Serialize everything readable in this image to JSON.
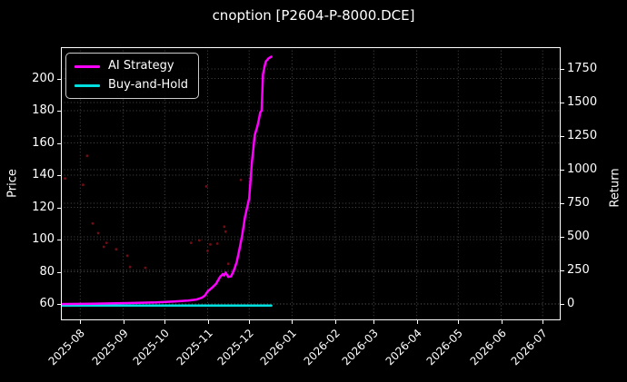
{
  "chart_data": {
    "type": "line",
    "title": "cnoption [P2604-P-8000.DCE]",
    "background": "#000000",
    "text_color": "#ffffff",
    "grid": {
      "visible": true,
      "style": "dotted",
      "color": "#4a4a4a"
    },
    "legend": {
      "position": "upper left",
      "items": [
        {
          "label": "AI Strategy",
          "color": "#ff00ff"
        },
        {
          "label": "Buy-and-Hold",
          "color": "#00e0e0"
        }
      ]
    },
    "x_axis": {
      "tick_labels": [
        "2025-08",
        "2025-09",
        "2025-10",
        "2025-11",
        "2025-12",
        "2026-01",
        "2026-02",
        "2026-03",
        "2026-04",
        "2026-05",
        "2026-06",
        "2026-07"
      ],
      "tick_dates": [
        "2025-08-01",
        "2025-09-01",
        "2025-10-01",
        "2025-11-01",
        "2025-12-01",
        "2026-01-01",
        "2026-02-01",
        "2026-03-01",
        "2026-04-01",
        "2026-05-01",
        "2026-06-01",
        "2026-07-01"
      ],
      "range": [
        "2025-07-18",
        "2026-07-14"
      ]
    },
    "left_axis": {
      "label": "Price",
      "ticks": [
        60,
        80,
        100,
        120,
        140,
        160,
        180,
        200
      ],
      "range": [
        49.9,
        219.4
      ]
    },
    "right_axis": {
      "label": "Return",
      "ticks": [
        0,
        250,
        500,
        750,
        1000,
        1250,
        1500,
        1750
      ],
      "range": [
        -122,
        1912
      ]
    },
    "series": [
      {
        "name": "AI Strategy",
        "color": "#ff00ff",
        "axis": "left",
        "points": [
          [
            "2025-07-18",
            60.0
          ],
          [
            "2025-08-10",
            60.2
          ],
          [
            "2025-09-05",
            60.6
          ],
          [
            "2025-09-25",
            61.0
          ],
          [
            "2025-10-08",
            61.6
          ],
          [
            "2025-10-18",
            62.2
          ],
          [
            "2025-10-24",
            62.8
          ],
          [
            "2025-10-28",
            64.0
          ],
          [
            "2025-10-30",
            65.2
          ],
          [
            "2025-11-01",
            67.8
          ],
          [
            "2025-11-04",
            70.0
          ],
          [
            "2025-11-07",
            72.4
          ],
          [
            "2025-11-10",
            76.9
          ],
          [
            "2025-11-12",
            78.6
          ],
          [
            "2025-11-13",
            77.8
          ],
          [
            "2025-11-14",
            79.5
          ],
          [
            "2025-11-16",
            76.8
          ],
          [
            "2025-11-18",
            77.2
          ],
          [
            "2025-11-20",
            81.0
          ],
          [
            "2025-11-22",
            86.0
          ],
          [
            "2025-11-24",
            94.0
          ],
          [
            "2025-11-26",
            103.0
          ],
          [
            "2025-11-28",
            114.0
          ],
          [
            "2025-12-01",
            125.5
          ],
          [
            "2025-12-03",
            148.0
          ],
          [
            "2025-12-04",
            156.5
          ],
          [
            "2025-12-05",
            164.8
          ],
          [
            "2025-12-07",
            170.4
          ],
          [
            "2025-12-08",
            174.5
          ],
          [
            "2025-12-09",
            178.9
          ],
          [
            "2025-12-10",
            180.0
          ],
          [
            "2025-12-11",
            202.5
          ],
          [
            "2025-12-12",
            207.0
          ],
          [
            "2025-12-13",
            210.5
          ],
          [
            "2025-12-15",
            212.5
          ],
          [
            "2025-12-17",
            213.5
          ]
        ]
      },
      {
        "name": "Buy-and-Hold",
        "color": "#00e0e0",
        "axis": "left",
        "points": [
          [
            "2025-07-18",
            59.0
          ],
          [
            "2025-12-17",
            59.0
          ]
        ]
      }
    ],
    "scatter": {
      "name": "option-price-dots",
      "color": "#8c1219",
      "points": [
        [
          "2025-07-21",
          138
        ],
        [
          "2025-08-03",
          134
        ],
        [
          "2025-08-06",
          152
        ],
        [
          "2025-08-10",
          110
        ],
        [
          "2025-08-14",
          104
        ],
        [
          "2025-08-18",
          95.5
        ],
        [
          "2025-08-20",
          98
        ],
        [
          "2025-08-27",
          94
        ],
        [
          "2025-09-04",
          90
        ],
        [
          "2025-09-06",
          83
        ],
        [
          "2025-09-17",
          82.5
        ],
        [
          "2025-10-20",
          98
        ],
        [
          "2025-10-26",
          99.5
        ],
        [
          "2025-10-31",
          133
        ],
        [
          "2025-11-01",
          93
        ],
        [
          "2025-11-03",
          97
        ],
        [
          "2025-11-08",
          97.5
        ],
        [
          "2025-11-13",
          108
        ],
        [
          "2025-11-14",
          105
        ],
        [
          "2025-11-16",
          85
        ],
        [
          "2025-11-25",
          137
        ]
      ]
    }
  }
}
